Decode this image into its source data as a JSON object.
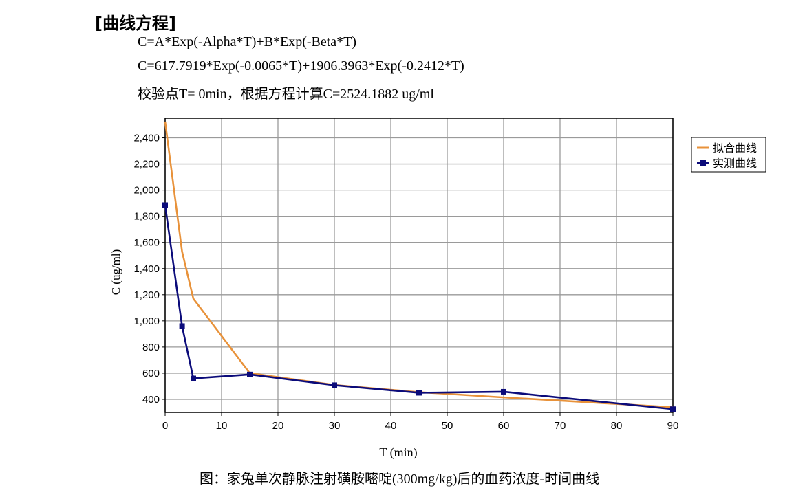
{
  "section_title": "[曲线方程]",
  "equations": [
    "C=A*Exp(-Alpha*T)+B*Exp(-Beta*T)",
    "C=617.7919*Exp(-0.0065*T)+1906.3963*Exp(-0.2412*T)",
    "校验点T=  0min，根据方程计算C=2524.1882 ug/ml"
  ],
  "caption": "图：家兔单次静脉注射磺胺嘧啶(300mg/kg)后的血药浓度-时间曲线",
  "colors": {
    "fitted": "#e8923a",
    "measured": "#0b0b7a",
    "grid": "#9a9a9a"
  },
  "chart_data": {
    "type": "line",
    "xlabel": "T (min)",
    "ylabel": "C (ug/ml)",
    "xlim": [
      0,
      90
    ],
    "ylim": [
      300,
      2550
    ],
    "x_ticks": [
      0,
      10,
      20,
      30,
      40,
      50,
      60,
      70,
      80,
      90
    ],
    "x_tick_labels": [
      "0",
      "10",
      "20",
      "30",
      "40",
      "50",
      "60",
      "70",
      "80",
      "90"
    ],
    "y_ticks": [
      400,
      600,
      800,
      1000,
      1200,
      1400,
      1600,
      1800,
      2000,
      2200,
      2400
    ],
    "y_tick_labels": [
      "400",
      "600",
      "800",
      "1,000",
      "1,200",
      "1,400",
      "1,600",
      "1,800",
      "2,000",
      "2,200",
      "2,400"
    ],
    "grid": true,
    "legend_position": "top-right",
    "series": [
      {
        "name": "拟合曲线",
        "marker": "none",
        "x": [
          0,
          3,
          5,
          15,
          30,
          45,
          60,
          90
        ],
        "y": [
          2524,
          1530,
          1170,
          600,
          510,
          455,
          415,
          340
        ]
      },
      {
        "name": "实测曲线",
        "marker": "square",
        "x": [
          0,
          3,
          5,
          15,
          30,
          45,
          60,
          90
        ],
        "y": [
          1885,
          960,
          560,
          590,
          508,
          450,
          458,
          325
        ]
      }
    ]
  }
}
